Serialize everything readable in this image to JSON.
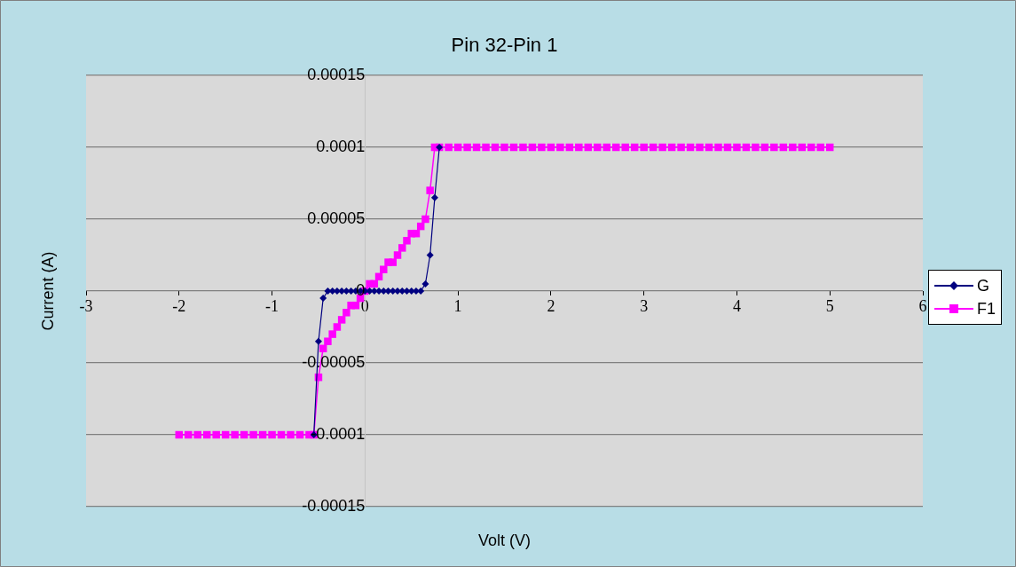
{
  "chart_data": {
    "type": "line",
    "title": "Pin 32-Pin 1",
    "xlabel": "Volt (V)",
    "ylabel": "Current (A)",
    "xlim": [
      -3,
      6
    ],
    "xticks": [
      -3,
      -2,
      -1,
      0,
      1,
      2,
      3,
      4,
      5,
      6
    ],
    "ylim": [
      -0.00015,
      0.00015
    ],
    "yticks": [
      -0.00015,
      -0.0001,
      {
        "value": -5e-05,
        "label": "-0.00005"
      },
      0,
      {
        "value": 5e-05,
        "label": "0.00005"
      },
      0.0001,
      0.00015
    ],
    "grid": "y",
    "legend": "right",
    "series": [
      {
        "name": "G",
        "color": "#000080",
        "marker": "diamond",
        "x": [
          -0.55,
          -0.5,
          -0.45,
          -0.4,
          -0.35,
          -0.3,
          -0.25,
          -0.2,
          -0.15,
          -0.1,
          -0.05,
          0,
          0.05,
          0.1,
          0.15,
          0.2,
          0.25,
          0.3,
          0.35,
          0.4,
          0.45,
          0.5,
          0.55,
          0.6,
          0.65,
          0.7,
          0.75,
          0.8
        ],
        "values": [
          -0.0001,
          -3.5e-05,
          -5e-06,
          0,
          0,
          0,
          0,
          0,
          0,
          0,
          0,
          0,
          0,
          0,
          0,
          0,
          0,
          0,
          0,
          0,
          0,
          0,
          0,
          0,
          5e-06,
          2.5e-05,
          6.5e-05,
          0.0001
        ]
      },
      {
        "name": "F1",
        "color": "#ff00ff",
        "marker": "square",
        "x": [
          -2,
          -1.9,
          -1.8,
          -1.7,
          -1.6,
          -1.5,
          -1.4,
          -1.3,
          -1.2,
          -1.1,
          -1,
          -0.9,
          -0.8,
          -0.7,
          -0.6,
          -0.55,
          -0.5,
          -0.45,
          -0.4,
          -0.35,
          -0.3,
          -0.25,
          -0.2,
          -0.15,
          -0.1,
          -0.05,
          0,
          0.05,
          0.1,
          0.15,
          0.2,
          0.25,
          0.3,
          0.35,
          0.4,
          0.45,
          0.5,
          0.55,
          0.6,
          0.65,
          0.7,
          0.75,
          0.8,
          0.9,
          1,
          1.1,
          1.2,
          1.3,
          1.4,
          1.5,
          1.6,
          1.7,
          1.8,
          1.9,
          2,
          2.1,
          2.2,
          2.3,
          2.4,
          2.5,
          2.6,
          2.7,
          2.8,
          2.9,
          3,
          3.1,
          3.2,
          3.3,
          3.4,
          3.5,
          3.6,
          3.7,
          3.8,
          3.9,
          4,
          4.1,
          4.2,
          4.3,
          4.4,
          4.5,
          4.6,
          4.7,
          4.8,
          4.9,
          5
        ],
        "values": [
          -0.0001,
          -0.0001,
          -0.0001,
          -0.0001,
          -0.0001,
          -0.0001,
          -0.0001,
          -0.0001,
          -0.0001,
          -0.0001,
          -0.0001,
          -0.0001,
          -0.0001,
          -0.0001,
          -0.0001,
          -0.0001,
          -6e-05,
          -4e-05,
          -3.5e-05,
          -3e-05,
          -2.5e-05,
          -2e-05,
          -1.5e-05,
          -1e-05,
          -1e-05,
          -5e-06,
          0,
          5e-06,
          5e-06,
          1e-05,
          1.5e-05,
          2e-05,
          2e-05,
          2.5e-05,
          3e-05,
          3.5e-05,
          4e-05,
          4e-05,
          4.5e-05,
          5e-05,
          7e-05,
          0.0001,
          0.0001,
          0.0001,
          0.0001,
          0.0001,
          0.0001,
          0.0001,
          0.0001,
          0.0001,
          0.0001,
          0.0001,
          0.0001,
          0.0001,
          0.0001,
          0.0001,
          0.0001,
          0.0001,
          0.0001,
          0.0001,
          0.0001,
          0.0001,
          0.0001,
          0.0001,
          0.0001,
          0.0001,
          0.0001,
          0.0001,
          0.0001,
          0.0001,
          0.0001,
          0.0001,
          0.0001,
          0.0001,
          0.0001,
          0.0001,
          0.0001,
          0.0001,
          0.0001,
          0.0001,
          0.0001,
          0.0001,
          0.0001,
          0.0001,
          0.0001
        ]
      }
    ]
  }
}
